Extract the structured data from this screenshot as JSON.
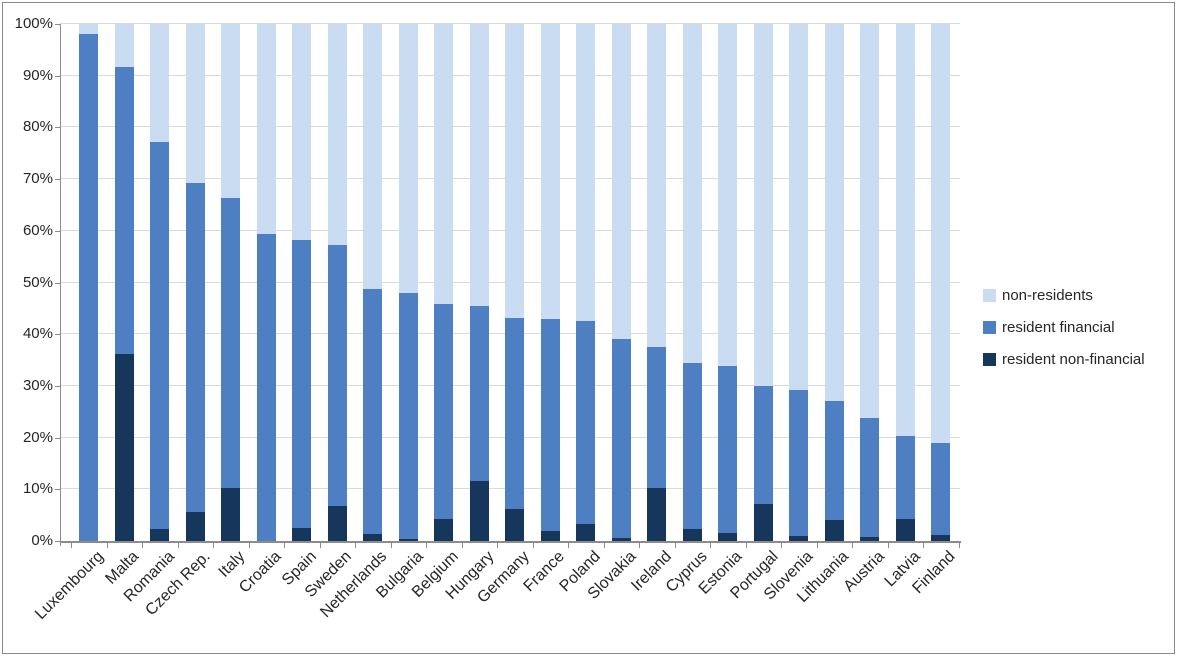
{
  "chart_data": {
    "type": "bar",
    "stacked": true,
    "stack_unit": "percent-of-total",
    "title": "",
    "xlabel": "",
    "ylabel": "",
    "categories": [
      "Luxembourg",
      "Malta",
      "Romania",
      "Czech Rep.",
      "Italy",
      "Croatia",
      "Spain",
      "Sweden",
      "Netherlands",
      "Bulgaria",
      "Belgium",
      "Hungary",
      "Germany",
      "France",
      "Poland",
      "Slovakia",
      "Ireland",
      "Cyprus",
      "Estonia",
      "Portugal",
      "Slovenia",
      "Lithuania",
      "Austria",
      "Latvia",
      "Finland"
    ],
    "stack_order": "bottom-to-top",
    "series": [
      {
        "name": "resident non-financial",
        "color": "#16365c",
        "values": [
          0,
          36.1,
          2.3,
          5.7,
          10.2,
          0,
          2.5,
          6.8,
          1.3,
          0.4,
          4.3,
          11.6,
          6.2,
          2.0,
          3.3,
          0.5,
          10.2,
          2.3,
          1.5,
          7.2,
          1.0,
          4.0,
          0.8,
          4.2,
          1.2
        ]
      },
      {
        "name": "resident financial",
        "color": "#4d7fc2",
        "values": [
          98.0,
          55.6,
          74.9,
          63.6,
          56.2,
          59.3,
          55.7,
          50.5,
          47.4,
          47.6,
          41.5,
          33.9,
          37.0,
          40.9,
          39.3,
          38.5,
          27.4,
          32.1,
          32.3,
          22.7,
          28.3,
          23.0,
          22.9,
          16.1,
          17.8
        ]
      },
      {
        "name": "non-residents",
        "color": "#cadcf2",
        "values": [
          2.0,
          8.3,
          22.8,
          30.7,
          33.6,
          40.7,
          41.8,
          42.7,
          51.3,
          52.0,
          54.2,
          54.5,
          56.8,
          57.1,
          57.4,
          61.0,
          62.4,
          65.6,
          66.2,
          70.1,
          70.7,
          73.0,
          76.3,
          79.7,
          81.0
        ]
      }
    ],
    "y_axis": {
      "min": 0,
      "max": 100,
      "unit": "%",
      "ticks": [
        "100%",
        "90%",
        "80%",
        "70%",
        "60%",
        "50%",
        "40%",
        "30%",
        "20%",
        "10%",
        "0%"
      ]
    },
    "grid": true,
    "legend": {
      "position": "right",
      "items": [
        {
          "label": "non-residents",
          "color": "#cadcf2"
        },
        {
          "label": "resident financial",
          "color": "#4d7fc2"
        },
        {
          "label": "resident non-financial",
          "color": "#16365c"
        }
      ]
    },
    "colors": {
      "gridline": "#dadada",
      "axis": "#8c8c8c",
      "text": "#262626",
      "frame_border": "#8a8a8a"
    }
  }
}
